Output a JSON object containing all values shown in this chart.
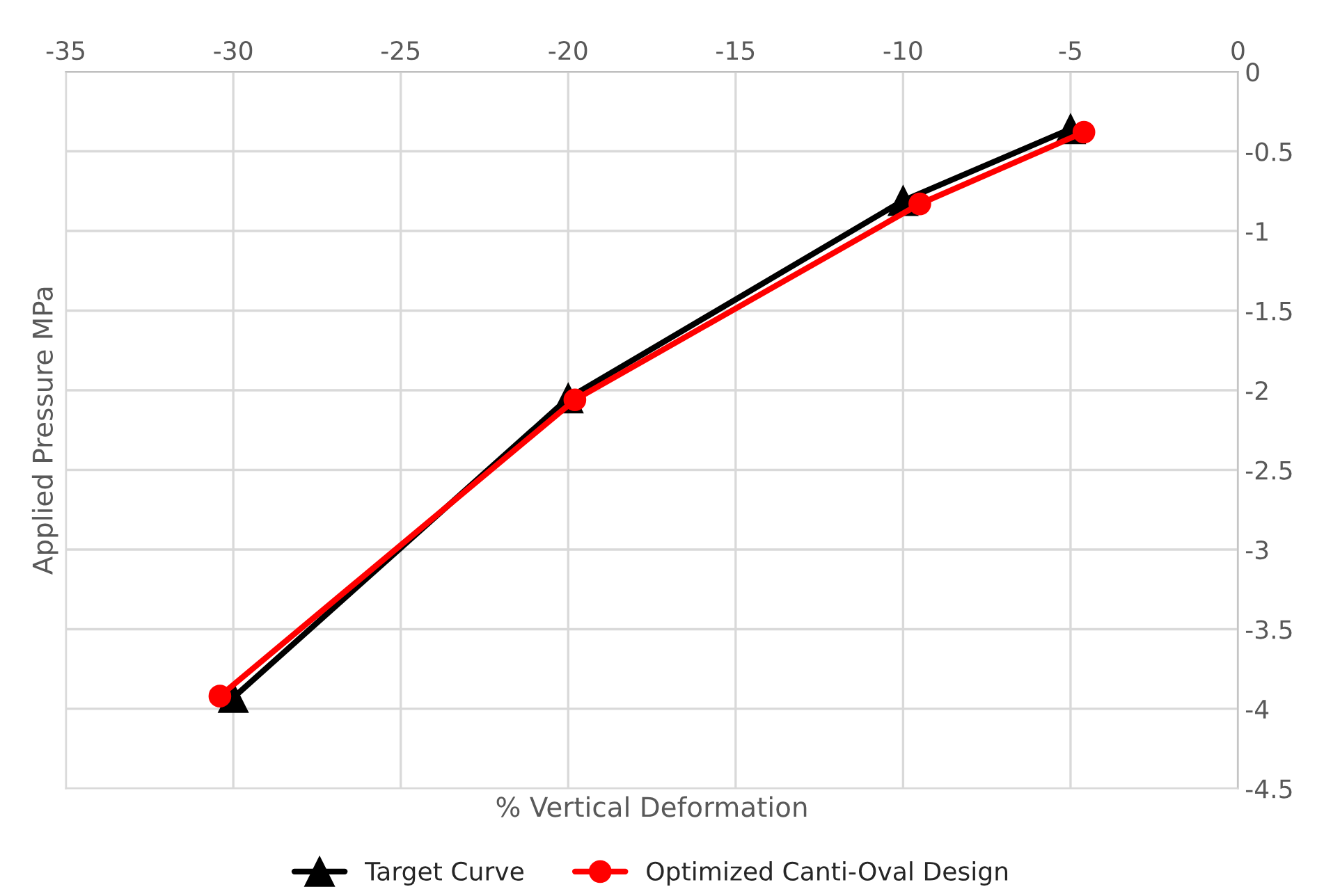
{
  "chart_data": {
    "type": "line",
    "xlabel": "% Vertical Deformation",
    "ylabel": "Applied Pressure MPa",
    "xlim": [
      -35,
      0
    ],
    "xticks": [
      -35,
      -30,
      -25,
      -20,
      -15,
      -10,
      -5,
      0
    ],
    "ylim": [
      -4.5,
      0
    ],
    "yticks": [
      -4.5,
      -4,
      -3.5,
      -3,
      -2.5,
      -2,
      -1.5,
      -1,
      -0.5,
      0
    ],
    "grid": true,
    "legend": "bottom",
    "series": [
      {
        "name": "Target Curve",
        "color": "#000000",
        "marker": "triangle",
        "x": [
          -30,
          -20,
          -10,
          -5
        ],
        "values": [
          -3.93,
          -2.05,
          -0.81,
          -0.36
        ]
      },
      {
        "name": "Optimized Canti-Oval Design",
        "color": "#ff0000",
        "marker": "circle",
        "x": [
          -30.4,
          -19.8,
          -9.5,
          -4.6
        ],
        "values": [
          -3.92,
          -2.06,
          -0.83,
          -0.38
        ]
      }
    ]
  }
}
